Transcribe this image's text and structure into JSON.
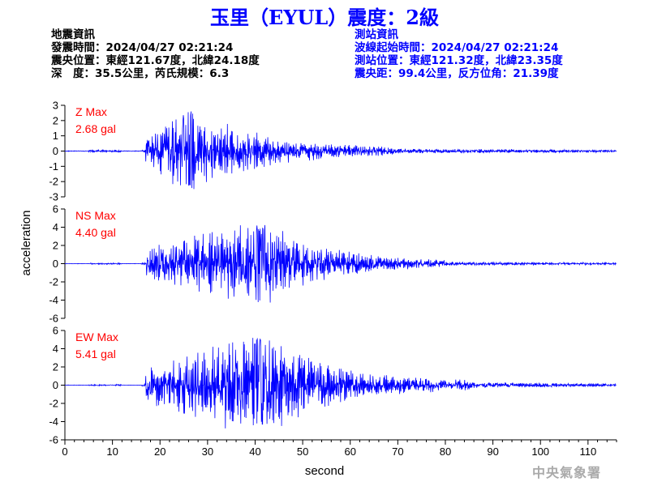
{
  "header": {
    "title": "玉里（EYUL）震度：2級"
  },
  "quake_info": {
    "heading": "地震資訊",
    "time": "發震時間：2024/04/27 02:21:24",
    "location": "震央位置：東經121.67度，北緯24.18度",
    "depth_magnitude": "深　度：35.5公里，芮氏規模：6.3"
  },
  "station_info": {
    "heading": "測站資訊",
    "wave_start": "波線起始時間：2024/04/27 02:21:24",
    "location": "測站位置：東經121.32度，北緯23.35度",
    "distance": "震央距：99.4公里，反方位角：21.39度"
  },
  "credit": "中央氣象署",
  "colors": {
    "trace": "#0000ff",
    "label": "#ff0000",
    "title": "#0000ff"
  },
  "chart_data": {
    "type": "line",
    "xlabel": "second",
    "ylabel": "acceleration",
    "xlim": [
      0,
      116
    ],
    "xticks": [
      0,
      10,
      20,
      30,
      40,
      50,
      60,
      70,
      80,
      90,
      100,
      110
    ],
    "grid": false,
    "panels": [
      {
        "component": "Z",
        "label_line1": "Z Max",
        "label_line2": "2.68 gal",
        "peak": 2.68,
        "ylim": [
          -3,
          3
        ],
        "yticks": [
          3,
          2,
          1,
          0,
          -1,
          -2,
          -3
        ],
        "envelope": {
          "onset": 17,
          "peak_time": 26,
          "peak_amplitude": 2.6,
          "decay_end": 70,
          "tail_amplitude": 0.15
        }
      },
      {
        "component": "NS",
        "label_line1": "NS Max",
        "label_line2": "4.40 gal",
        "peak": 4.4,
        "ylim": [
          -6,
          6
        ],
        "yticks": [
          6,
          4,
          2,
          0,
          -2,
          -4,
          -6
        ],
        "envelope": {
          "onset": 17,
          "peak_time": 41,
          "peak_amplitude": 4.4,
          "decay_end": 80,
          "tail_amplitude": 0.2
        }
      },
      {
        "component": "EW",
        "label_line1": "EW Max",
        "label_line2": "5.41 gal",
        "peak": 5.41,
        "ylim": [
          -6,
          6
        ],
        "yticks": [
          6,
          4,
          2,
          0,
          -2,
          -4,
          -6
        ],
        "envelope": {
          "onset": 17,
          "peak_time": 41,
          "peak_amplitude": 5.2,
          "decay_end": 85,
          "tail_amplitude": 0.3
        }
      }
    ]
  }
}
